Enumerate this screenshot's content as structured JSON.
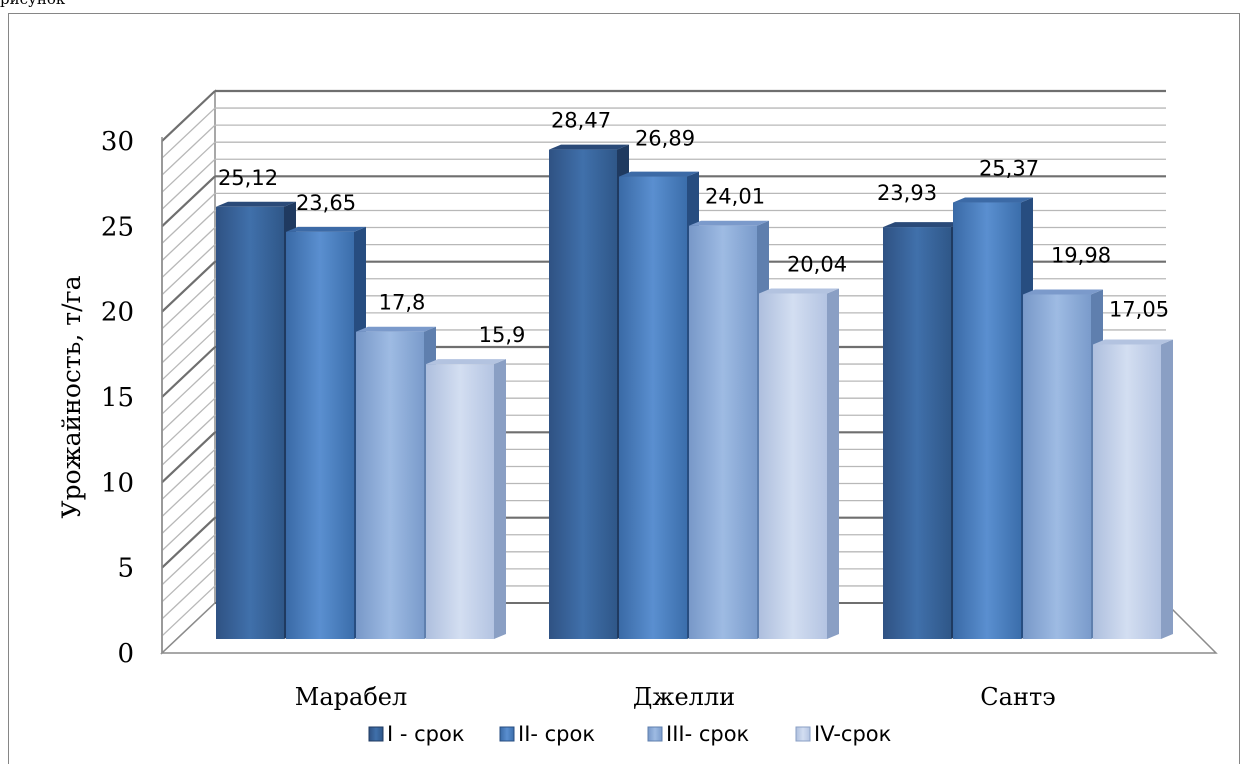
{
  "top_text": "рисунок",
  "chart_data": {
    "type": "bar",
    "title": "",
    "xlabel": "",
    "ylabel": "Урожайность, т/га",
    "ylim": [
      0,
      30
    ],
    "yticks": [
      0,
      5,
      10,
      15,
      20,
      25,
      30
    ],
    "categories": [
      "Марабел",
      "Джелли",
      "Сантэ"
    ],
    "series": [
      {
        "name": "I - срок",
        "values": [
          25.12,
          28.47,
          23.93
        ],
        "labels": [
          "25,12",
          "28,47",
          "23,93"
        ],
        "color": "#3d679e"
      },
      {
        "name": "II- срок",
        "values": [
          23.65,
          26.89,
          25.37
        ],
        "labels": [
          "23,65",
          "26,89",
          "25,37"
        ],
        "color": "#4a80c2"
      },
      {
        "name": "III- срок",
        "values": [
          17.8,
          24.01,
          19.98
        ],
        "labels": [
          "17,8",
          "24,01",
          "19,98"
        ],
        "color": "#8eadd9"
      },
      {
        "name": "IV-срок",
        "values": [
          15.9,
          20.04,
          17.05
        ],
        "labels": [
          "15,9",
          "20,04",
          "17,05"
        ],
        "color": "#c3d1ea"
      }
    ],
    "grid": true,
    "legend_position": "bottom",
    "style": "3d-column"
  }
}
